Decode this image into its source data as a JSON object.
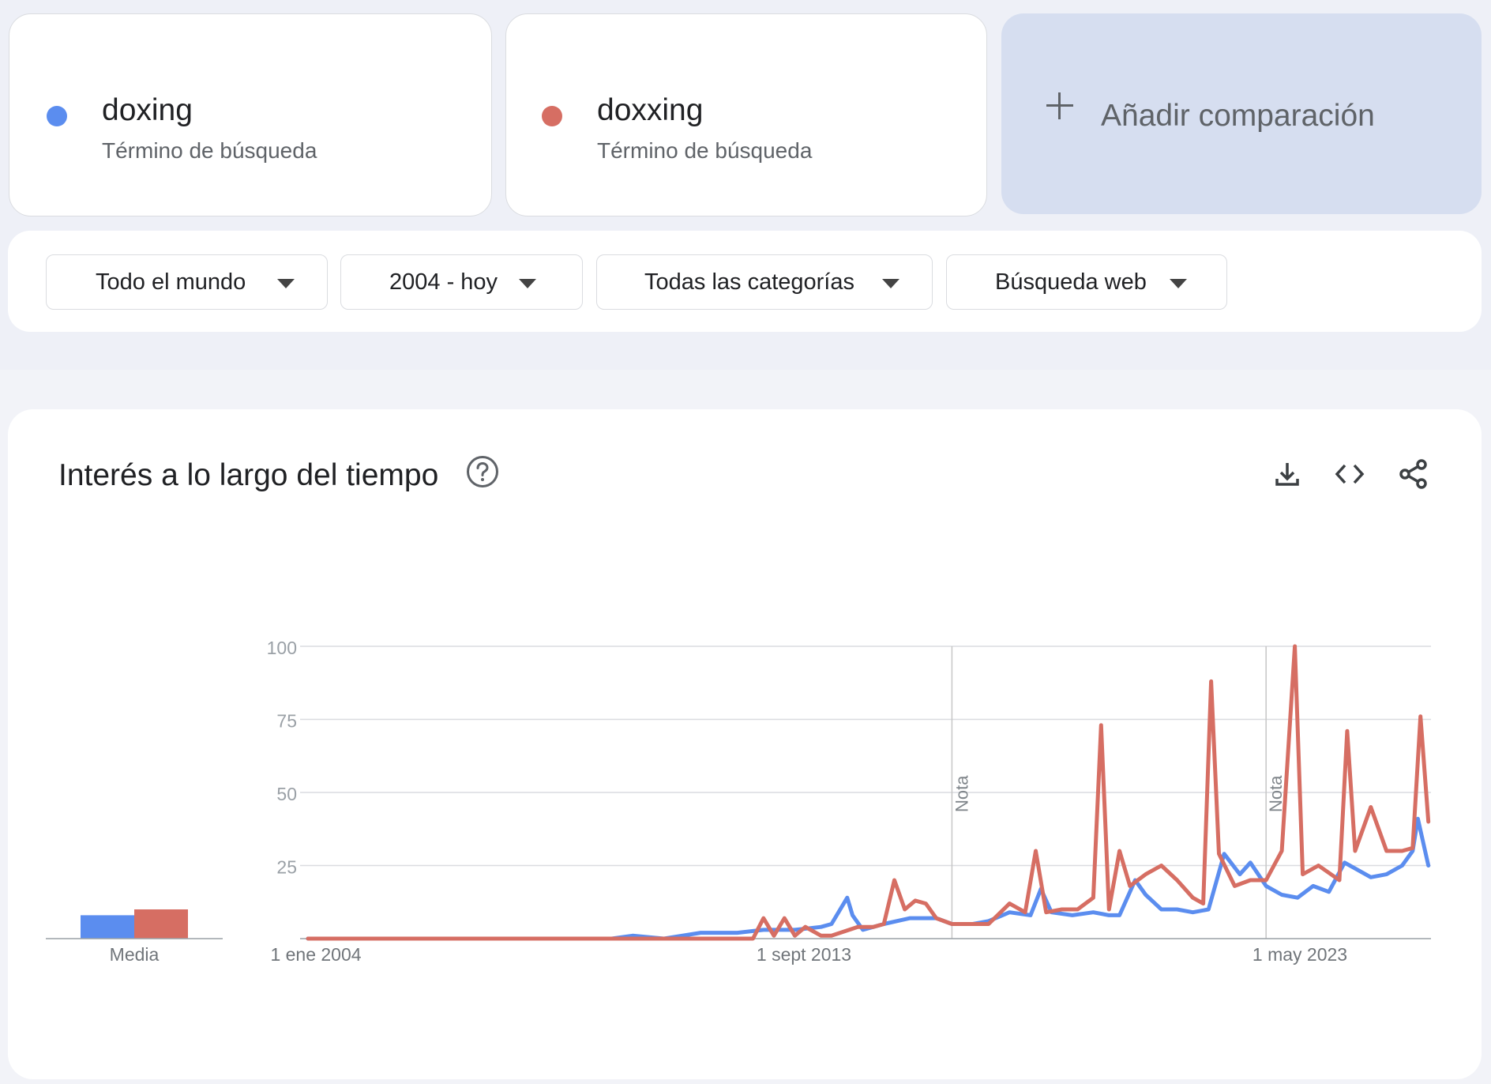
{
  "terms": [
    {
      "name": "doxing",
      "subtitle": "Término de búsqueda",
      "color": "#5b8def"
    },
    {
      "name": "doxxing",
      "subtitle": "Término de búsqueda",
      "color": "#d66e63"
    }
  ],
  "add_comparison": {
    "label": "Añadir comparación",
    "icon": "plus-icon"
  },
  "filters": [
    {
      "label": "Todo el mundo",
      "icon": "caret-down-icon"
    },
    {
      "label": "2004 - hoy",
      "icon": "caret-down-icon"
    },
    {
      "label": "Todas las categorías",
      "icon": "caret-down-icon"
    },
    {
      "label": "Búsqueda web",
      "icon": "caret-down-icon"
    }
  ],
  "interest_card": {
    "title": "Interés a lo largo del tiempo",
    "icons": [
      "help-icon",
      "download-icon",
      "embed-code-icon",
      "share-icon"
    ]
  },
  "chart_data": {
    "type": "line",
    "yticks": [
      100,
      75,
      50,
      25
    ],
    "ylim": [
      0,
      100
    ],
    "xlabels": [
      "1 ene 2004",
      "1 sept 2013",
      "1 may 2023"
    ],
    "annotations": [
      {
        "text": "Nota",
        "x": 2016.3
      },
      {
        "text": "Nota",
        "x": 2022.3
      }
    ],
    "average": {
      "label": "Media",
      "values": [
        8,
        10
      ]
    },
    "series": [
      {
        "name": "doxing",
        "color": "#5b8def",
        "points": [
          [
            2004.0,
            0
          ],
          [
            2009.0,
            0
          ],
          [
            2009.8,
            0
          ],
          [
            2010.2,
            1
          ],
          [
            2010.8,
            0
          ],
          [
            2011.5,
            2
          ],
          [
            2012.2,
            2
          ],
          [
            2012.7,
            3
          ],
          [
            2013.3,
            3
          ],
          [
            2013.8,
            4
          ],
          [
            2014.0,
            5
          ],
          [
            2014.3,
            14
          ],
          [
            2014.4,
            8
          ],
          [
            2014.6,
            3
          ],
          [
            2015.0,
            5
          ],
          [
            2015.5,
            7
          ],
          [
            2016.0,
            7
          ],
          [
            2016.3,
            5
          ],
          [
            2016.7,
            5
          ],
          [
            2017.0,
            6
          ],
          [
            2017.4,
            9
          ],
          [
            2017.8,
            8
          ],
          [
            2018.0,
            17
          ],
          [
            2018.2,
            9
          ],
          [
            2018.6,
            8
          ],
          [
            2019.0,
            9
          ],
          [
            2019.3,
            8
          ],
          [
            2019.5,
            8
          ],
          [
            2019.8,
            20
          ],
          [
            2020.0,
            15
          ],
          [
            2020.3,
            10
          ],
          [
            2020.6,
            10
          ],
          [
            2020.9,
            9
          ],
          [
            2021.2,
            10
          ],
          [
            2021.5,
            29
          ],
          [
            2021.8,
            22
          ],
          [
            2022.0,
            26
          ],
          [
            2022.3,
            18
          ],
          [
            2022.6,
            15
          ],
          [
            2022.9,
            14
          ],
          [
            2023.2,
            18
          ],
          [
            2023.5,
            16
          ],
          [
            2023.8,
            26
          ],
          [
            2024.0,
            24
          ],
          [
            2024.3,
            21
          ],
          [
            2024.6,
            22
          ],
          [
            2024.9,
            25
          ],
          [
            2025.1,
            30
          ],
          [
            2025.2,
            41
          ],
          [
            2025.4,
            25
          ]
        ]
      },
      {
        "name": "doxxing",
        "color": "#d66e63",
        "points": [
          [
            2004.0,
            0
          ],
          [
            2012.5,
            0
          ],
          [
            2012.7,
            7
          ],
          [
            2012.9,
            1
          ],
          [
            2013.1,
            7
          ],
          [
            2013.3,
            1
          ],
          [
            2013.5,
            4
          ],
          [
            2013.8,
            1
          ],
          [
            2014.0,
            1
          ],
          [
            2014.5,
            4
          ],
          [
            2014.8,
            4
          ],
          [
            2015.0,
            5
          ],
          [
            2015.2,
            20
          ],
          [
            2015.4,
            10
          ],
          [
            2015.6,
            13
          ],
          [
            2015.8,
            12
          ],
          [
            2016.0,
            7
          ],
          [
            2016.3,
            5
          ],
          [
            2016.6,
            5
          ],
          [
            2017.0,
            5
          ],
          [
            2017.4,
            12
          ],
          [
            2017.7,
            9
          ],
          [
            2017.9,
            30
          ],
          [
            2018.1,
            9
          ],
          [
            2018.4,
            10
          ],
          [
            2018.7,
            10
          ],
          [
            2019.0,
            14
          ],
          [
            2019.15,
            73
          ],
          [
            2019.3,
            10
          ],
          [
            2019.5,
            30
          ],
          [
            2019.7,
            18
          ],
          [
            2020.0,
            22
          ],
          [
            2020.3,
            25
          ],
          [
            2020.6,
            20
          ],
          [
            2020.9,
            14
          ],
          [
            2021.1,
            12
          ],
          [
            2021.25,
            88
          ],
          [
            2021.4,
            29
          ],
          [
            2021.7,
            18
          ],
          [
            2022.0,
            20
          ],
          [
            2022.3,
            20
          ],
          [
            2022.6,
            30
          ],
          [
            2022.85,
            100
          ],
          [
            2023.0,
            22
          ],
          [
            2023.3,
            25
          ],
          [
            2023.7,
            20
          ],
          [
            2023.85,
            71
          ],
          [
            2024.0,
            30
          ],
          [
            2024.3,
            45
          ],
          [
            2024.6,
            30
          ],
          [
            2024.9,
            30
          ],
          [
            2025.1,
            31
          ],
          [
            2025.25,
            76
          ],
          [
            2025.4,
            40
          ]
        ]
      }
    ]
  }
}
